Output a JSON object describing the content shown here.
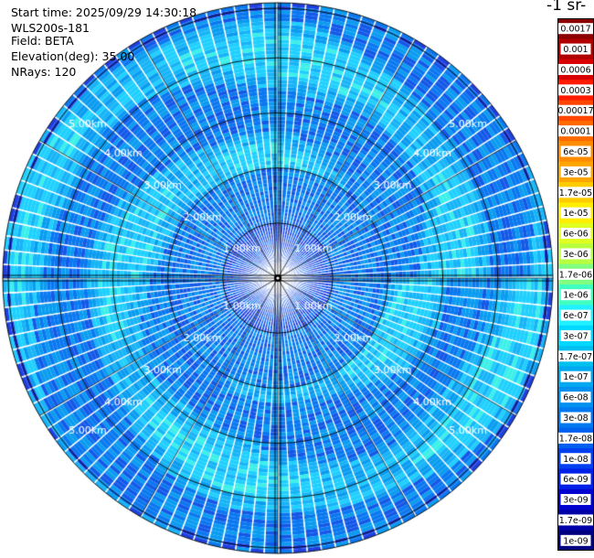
{
  "header": {
    "start_time": "Start time: 2025/09/29 14:30:18",
    "instrument": "WLS200s-181",
    "field": "Field: BETA",
    "elevation": "Elevation(deg): 35.00",
    "nrays": "NRays: 120"
  },
  "colorbar": {
    "unit_label": "-1 sr-",
    "ticks": [
      "0.0017",
      "0.001",
      "0.0006",
      "0.0003",
      "0.00017",
      "0.0001",
      "6e-05",
      "3e-05",
      "1.7e-05",
      "1e-05",
      "6e-06",
      "3e-06",
      "1.7e-06",
      "1e-06",
      "6e-07",
      "3e-07",
      "1.7e-07",
      "1e-07",
      "6e-08",
      "3e-08",
      "1.7e-08",
      "1e-08",
      "6e-09",
      "3e-09",
      "1.7e-09",
      "1e-09"
    ],
    "colors": [
      "#8b0000",
      "#b00000",
      "#d80000",
      "#ff1a00",
      "#ff4500",
      "#ff6a00",
      "#ff8c00",
      "#ffa500",
      "#ffcc00",
      "#ffee00",
      "#e0ff20",
      "#b8ff40",
      "#80ff80",
      "#40ffc0",
      "#20f0ff",
      "#00d8ff",
      "#00c0f0",
      "#00a8f0",
      "#0090f0",
      "#0078f0",
      "#0060f0",
      "#0040f0",
      "#0020e8",
      "#0000d0",
      "#0000a8",
      "#000080"
    ]
  },
  "chart_data": {
    "type": "heatmap",
    "projection": "polar (PPI scan)",
    "field": "BETA",
    "elevation_deg": 35.0,
    "n_rays": 120,
    "range_rings_km": [
      1,
      2,
      3,
      4,
      5
    ],
    "ring_labels": [
      "1.00km",
      "2.00km",
      "3.00km",
      "4.00km",
      "5.00km"
    ],
    "max_range_km": 5.0,
    "dominant_value_range": [
      "1.7e-08",
      "1.7e-07"
    ],
    "background_color": "#0a78f0",
    "accent_colors": [
      "#1fd0ff",
      "#0a78f0",
      "#1f40e0"
    ]
  }
}
